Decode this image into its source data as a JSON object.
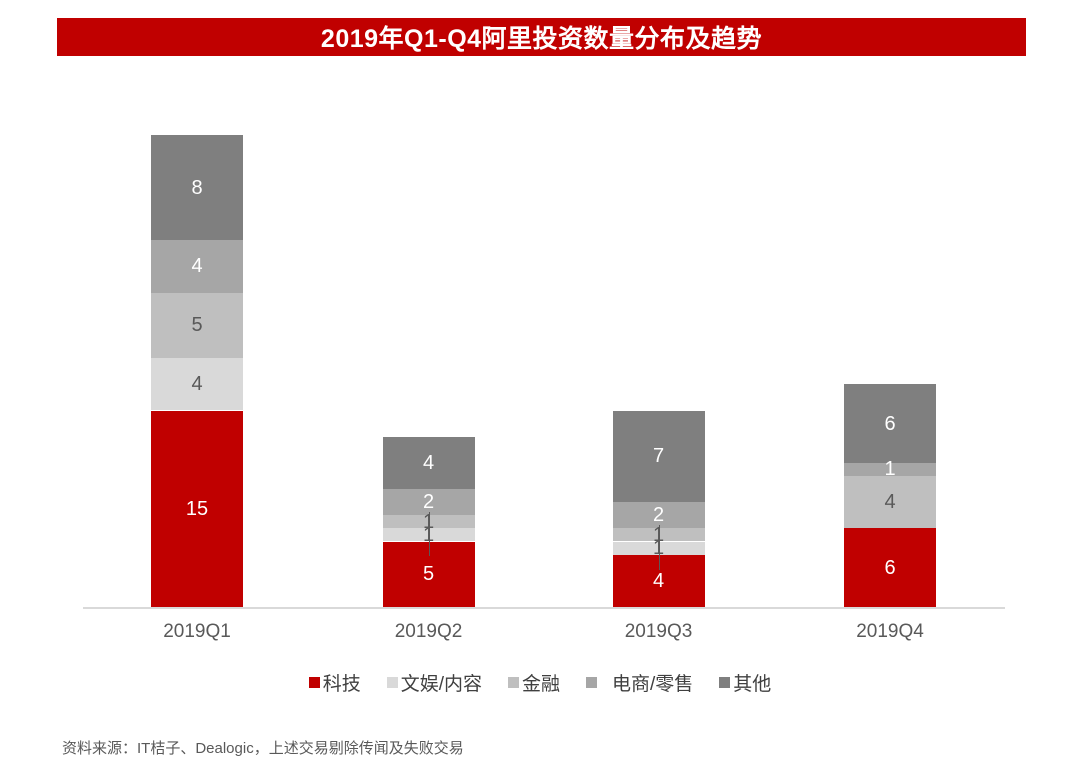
{
  "title": "2019年Q1-Q4阿里投资数量分布及趋势",
  "footer": "资料来源：IT桔子、Dealogic，上述交易剔除传闻及失败交易",
  "colors": {
    "banner_red": "#C00000",
    "axis_line": "#D9D9D9",
    "axis_label": "#595959",
    "dark_value_label": "#595959",
    "white_value_label": "#FFFFFF",
    "legend_text": "#404040"
  },
  "chart_data": {
    "type": "bar",
    "stacked": true,
    "title": "2019年Q1-Q4阿里投资数量分布及趋势",
    "xlabel": "",
    "ylabel": "",
    "categories": [
      "2019Q1",
      "2019Q2",
      "2019Q3",
      "2019Q4"
    ],
    "series": [
      {
        "name": "科技",
        "color": "#C00000",
        "label_color": "#FFFFFF",
        "values": [
          15,
          5,
          4,
          6
        ]
      },
      {
        "name": "文娱/内容",
        "color": "#D9D9D9",
        "label_color": "#595959",
        "values": [
          4,
          1,
          1,
          0
        ]
      },
      {
        "name": "金融",
        "color": "#BFBFBF",
        "label_color": "#595959",
        "values": [
          5,
          1,
          1,
          4
        ]
      },
      {
        "name": "电商/零售",
        "color": "#A6A6A6",
        "label_color": "#FFFFFF",
        "values": [
          4,
          2,
          2,
          1
        ]
      },
      {
        "name": "其他",
        "color": "#7F7F7F",
        "label_color": "#FFFFFF",
        "values": [
          8,
          4,
          7,
          6
        ]
      }
    ],
    "totals": [
      36,
      13,
      15,
      17
    ],
    "value_labels": true,
    "legend_position": "bottom",
    "grid": false
  }
}
